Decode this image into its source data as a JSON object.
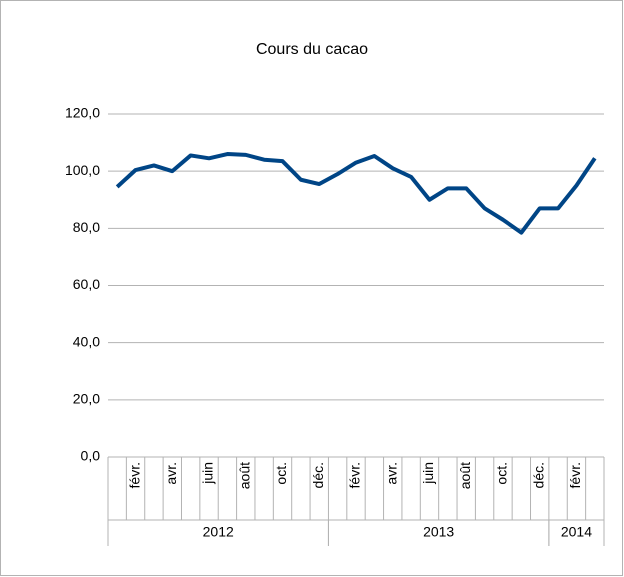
{
  "chart_data": {
    "type": "line",
    "title": "Cours du cacao",
    "categories": [
      null,
      "févr.",
      null,
      "avr.",
      null,
      "juin",
      null,
      "août",
      null,
      "oct.",
      null,
      "déc.",
      null,
      "févr.",
      null,
      "avr.",
      null,
      "juin",
      null,
      "août",
      null,
      "oct.",
      null,
      "déc.",
      null,
      "févr.",
      null
    ],
    "years": [
      {
        "name": "2012",
        "months": 12
      },
      {
        "name": "2013",
        "months": 12
      },
      {
        "name": "2014",
        "months": 3
      }
    ],
    "series": [
      {
        "name": "Cours du cacao",
        "color": "#004586",
        "values": [
          94.5,
          100.4,
          102,
          100,
          105.5,
          104.5,
          106,
          105.7,
          104,
          103.5,
          97,
          95.5,
          99,
          103,
          105.3,
          101,
          98,
          90,
          94,
          94,
          87,
          83,
          78.5,
          87,
          87,
          95,
          104.5
        ]
      }
    ],
    "ylim": [
      0,
      120
    ],
    "yticks": [
      {
        "value": 0,
        "label": "0,0"
      },
      {
        "value": 20,
        "label": "20,0"
      },
      {
        "value": 40,
        "label": "40,0"
      },
      {
        "value": 60,
        "label": "60,0"
      },
      {
        "value": 80,
        "label": "80,0"
      },
      {
        "value": 100,
        "label": "100,0"
      },
      {
        "value": 120,
        "label": "120,0"
      }
    ],
    "grid": true
  }
}
